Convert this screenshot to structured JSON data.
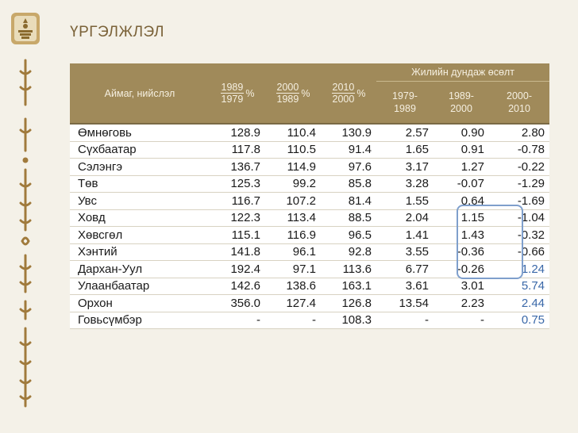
{
  "slide_title": "ҮРГЭЛЖЛЭЛ",
  "header": {
    "aimag_label": "Аймаг, нийслэл",
    "ratios": [
      {
        "num": "1989",
        "den": "1979",
        "unit": "%"
      },
      {
        "num": "2000",
        "den": "1989",
        "unit": "%"
      },
      {
        "num": "2010",
        "den": "2000",
        "unit": "%"
      }
    ],
    "growth_title": "Жилийн дундаж өсөлт",
    "periods": [
      {
        "line1": "1979-",
        "line2": "1989"
      },
      {
        "line1": "1989-",
        "line2": "2000"
      },
      {
        "line1": "2000-",
        "line2": "2010"
      }
    ]
  },
  "rows": [
    {
      "name": "Өмнөговь",
      "r1": "128.9",
      "r2": "110.4",
      "r3": "130.9",
      "g1": "2.57",
      "g2": "0.90",
      "g3": "2.80"
    },
    {
      "name": "Сүхбаатар",
      "r1": "117.8",
      "r2": "110.5",
      "r3": "91.4",
      "g1": "1.65",
      "g2": "0.91",
      "g3": "-0.78"
    },
    {
      "name": "Сэлэнгэ",
      "r1": "136.7",
      "r2": "114.9",
      "r3": "97.6",
      "g1": "3.17",
      "g2": "1.27",
      "g3": "-0.22"
    },
    {
      "name": "Төв",
      "r1": "125.3",
      "r2": "99.2",
      "r3": "85.8",
      "g1": "3.28",
      "g2": "-0.07",
      "g3": "-1.29"
    },
    {
      "name": "Увс",
      "r1": "116.7",
      "r2": "107.2",
      "r3": "81.4",
      "g1": "1.55",
      "g2": "0.64",
      "g3": "-1.69"
    },
    {
      "name": "Ховд",
      "r1": "122.3",
      "r2": "113.4",
      "r3": "88.5",
      "g1": "2.04",
      "g2": "1.15",
      "g3": "-1.04"
    },
    {
      "name": "Хөвсгөл",
      "r1": "115.1",
      "r2": "116.9",
      "r3": "96.5",
      "g1": "1.41",
      "g2": "1.43",
      "g3": "-0.32"
    },
    {
      "name": "Хэнтий",
      "r1": "141.8",
      "r2": "96.1",
      "r3": "92.8",
      "g1": "3.55",
      "g2": "-0.36",
      "g3": "-0.66"
    },
    {
      "name": "Дархан-Уул",
      "r1": "192.4",
      "r2": "97.1",
      "r3": "113.6",
      "g1": "6.77",
      "g2": "-0.26",
      "g3": "1.24"
    },
    {
      "name": "Улаанбаатар",
      "r1": "142.6",
      "r2": "138.6",
      "r3": "163.1",
      "g1": "3.61",
      "g2": "3.01",
      "g3": "5.74"
    },
    {
      "name": "Орхон",
      "r1": "356.0",
      "r2": "127.4",
      "r3": "126.8",
      "g1": "13.54",
      "g2": "2.23",
      "g3": "2.44"
    },
    {
      "name": "Говьсүмбэр",
      "r1": "-",
      "r2": "-",
      "r3": "108.3",
      "g1": "-",
      "g2": "-",
      "g3": "0.75"
    }
  ],
  "colors": {
    "header_bg": "#a08a5a",
    "accent_title": "#7a6238",
    "highlight_border": "#7f9fcc",
    "highlight_text": "#3a68a8"
  }
}
